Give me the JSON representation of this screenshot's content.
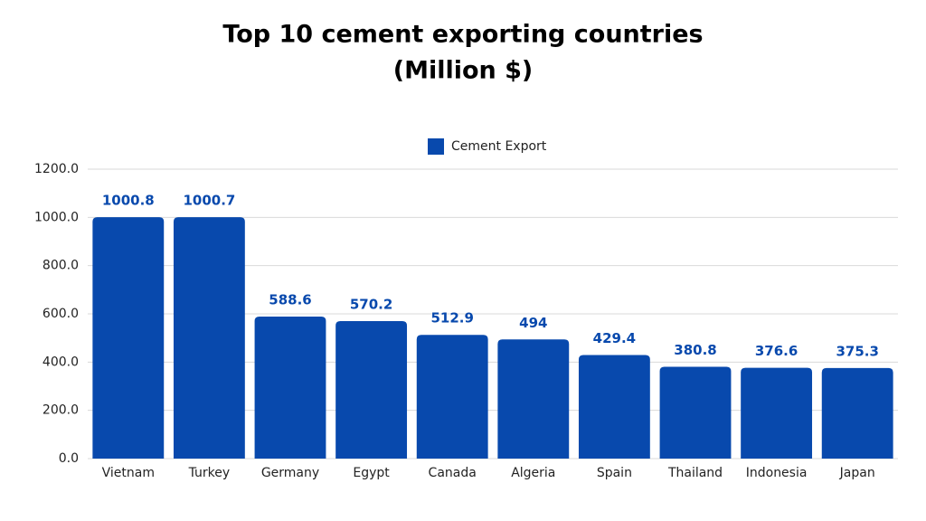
{
  "chart_data": {
    "type": "bar",
    "title": "Top 10 cement exporting countries",
    "subtitle": "(Million $)",
    "categories": [
      "Vietnam",
      "Turkey",
      "Germany",
      "Egypt",
      "Canada",
      "Algeria",
      "Spain",
      "Thailand",
      "Indonesia",
      "Japan"
    ],
    "series": [
      {
        "name": "Cement Export",
        "color": "#0849ad",
        "values": [
          1000.8,
          1000.7,
          588.6,
          570.2,
          512.9,
          494,
          429.4,
          380.8,
          376.6,
          375.3
        ]
      }
    ],
    "ylim": [
      0,
      1200
    ],
    "yticks": [
      {
        "value": 0,
        "label": "0.0"
      },
      {
        "value": 200,
        "label": "200.0"
      },
      {
        "value": 400,
        "label": "400.0"
      },
      {
        "value": 600,
        "label": "600.0"
      },
      {
        "value": 800,
        "label": "800.0"
      },
      {
        "value": 1000,
        "label": "1000.0"
      },
      {
        "value": 1200,
        "label": "1200.0"
      }
    ],
    "grid": true,
    "legend": "top"
  }
}
